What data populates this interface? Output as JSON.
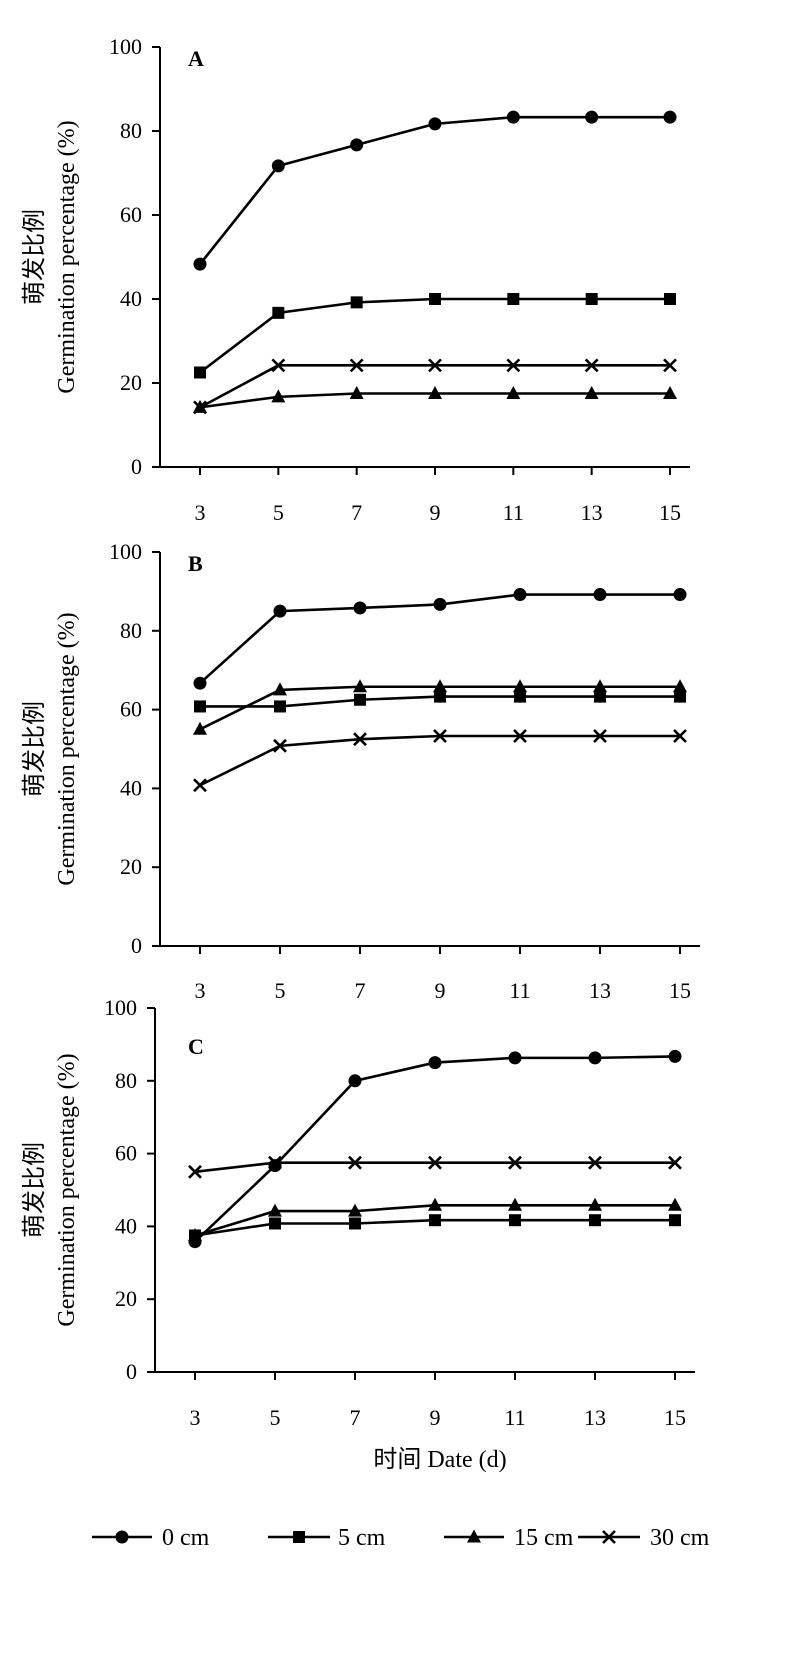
{
  "chart_data": [
    {
      "type": "line",
      "panel_label": "A",
      "ylabel_cn": "萌发比例",
      "ylabel_en": "Germination percentage (%)",
      "xlabel": "",
      "x": [
        3,
        5,
        7,
        9,
        11,
        13,
        15
      ],
      "ylim": [
        0,
        100
      ],
      "yticks": [
        0,
        20,
        40,
        60,
        80,
        100
      ],
      "grid": false,
      "series": [
        {
          "name": "0 cm",
          "values": [
            48.3,
            71.7,
            76.7,
            81.7,
            83.3,
            83.3,
            83.3
          ]
        },
        {
          "name": "5 cm",
          "values": [
            22.5,
            36.7,
            39.2,
            40.0,
            40.0,
            40.0,
            40.0
          ]
        },
        {
          "name": "15 cm",
          "values": [
            14.2,
            16.7,
            17.5,
            17.5,
            17.5,
            17.5,
            17.5
          ]
        },
        {
          "name": "30 cm",
          "values": [
            14.2,
            24.2,
            24.2,
            24.2,
            24.2,
            24.2,
            24.2
          ]
        }
      ]
    },
    {
      "type": "line",
      "panel_label": "B",
      "ylabel_cn": "萌发比例",
      "ylabel_en": "Germination percentage (%)",
      "xlabel": "",
      "x": [
        3,
        5,
        7,
        9,
        11,
        13,
        15
      ],
      "ylim": [
        0,
        100
      ],
      "yticks": [
        0,
        20,
        40,
        60,
        80,
        100
      ],
      "grid": false,
      "series": [
        {
          "name": "0 cm",
          "values": [
            66.7,
            85.0,
            85.8,
            86.7,
            89.2,
            89.2,
            89.2
          ]
        },
        {
          "name": "5 cm",
          "values": [
            60.8,
            60.8,
            62.5,
            63.3,
            63.3,
            63.3,
            63.3
          ]
        },
        {
          "name": "15 cm",
          "values": [
            55.0,
            65.0,
            65.8,
            65.8,
            65.8,
            65.8,
            65.8
          ]
        },
        {
          "name": "30 cm",
          "values": [
            40.8,
            50.8,
            52.5,
            53.3,
            53.3,
            53.3,
            53.3
          ]
        }
      ]
    },
    {
      "type": "line",
      "panel_label": "C",
      "ylabel_cn": "萌发比例",
      "ylabel_en": "Germination percentage (%)",
      "xlabel": "时间 Date (d)",
      "x": [
        3,
        5,
        7,
        9,
        11,
        13,
        15
      ],
      "ylim": [
        0,
        100
      ],
      "yticks": [
        0,
        20,
        40,
        60,
        80,
        100
      ],
      "grid": false,
      "series": [
        {
          "name": "0 cm",
          "values": [
            35.8,
            56.7,
            80.0,
            85.0,
            86.3,
            86.3,
            86.7
          ]
        },
        {
          "name": "5 cm",
          "values": [
            37.5,
            40.8,
            40.8,
            41.7,
            41.7,
            41.7,
            41.7
          ]
        },
        {
          "name": "15 cm",
          "values": [
            37.5,
            44.2,
            44.2,
            45.8,
            45.8,
            45.8,
            45.8
          ]
        },
        {
          "name": "30 cm",
          "values": [
            55.0,
            57.5,
            57.5,
            57.5,
            57.5,
            57.5,
            57.5
          ]
        }
      ]
    }
  ],
  "legend": {
    "placement": "bottom",
    "items": [
      {
        "label": "0 cm",
        "marker": "circle"
      },
      {
        "label": "5 cm",
        "marker": "square"
      },
      {
        "label": "15 cm",
        "marker": "triangle"
      },
      {
        "label": "30 cm",
        "marker": "cross"
      }
    ]
  }
}
